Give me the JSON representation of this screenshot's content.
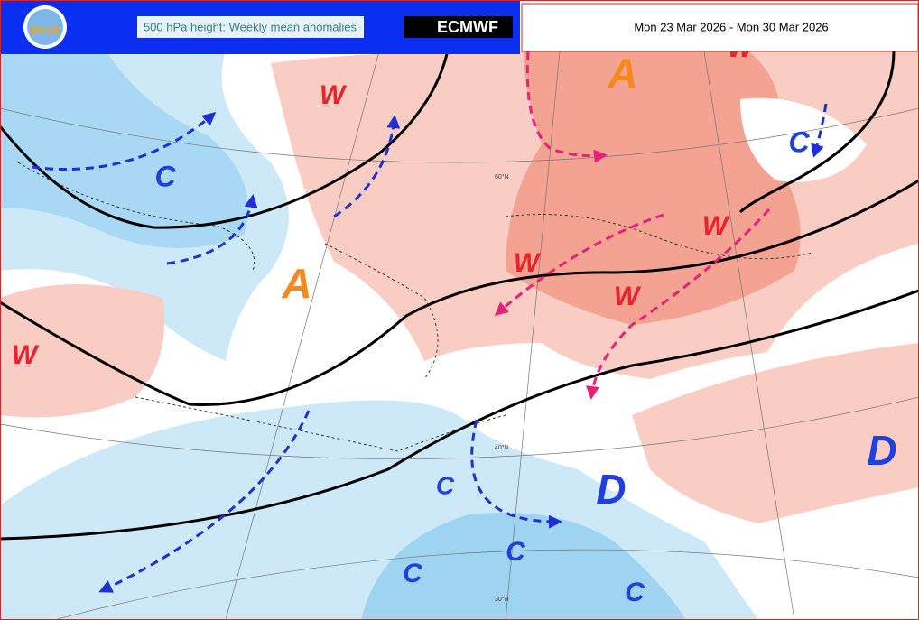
{
  "header": {
    "logo": "BMCB",
    "title": "500 hPa height: Weekly mean anomalies",
    "brand": "ECMWF",
    "date_range": "Mon 23 Mar 2026 - Mon 30 Mar 2026"
  },
  "map": {
    "grid_labels": [
      "60°N",
      "40°N",
      "30°N"
    ],
    "labels": [
      {
        "text": "W",
        "color": "#e8232a"
      },
      {
        "text": "W",
        "color": "#e8232a"
      },
      {
        "text": "W",
        "color": "#e8232a"
      },
      {
        "text": "W",
        "color": "#e8232a"
      },
      {
        "text": "W",
        "color": "#e8232a"
      },
      {
        "text": "W",
        "color": "#e8232a"
      },
      {
        "text": "A",
        "color": "#f5891f"
      },
      {
        "text": "A",
        "color": "#f5891f"
      },
      {
        "text": "C",
        "color": "#1f3fe0"
      },
      {
        "text": "C",
        "color": "#1f3fe0"
      },
      {
        "text": "C",
        "color": "#1f3fe0"
      },
      {
        "text": "C",
        "color": "#1f3fe0"
      },
      {
        "text": "C",
        "color": "#1f3fe0"
      },
      {
        "text": "C",
        "color": "#1f3fe0"
      },
      {
        "text": "D",
        "color": "#1f3fe0"
      },
      {
        "text": "D",
        "color": "#1f3fe0"
      }
    ]
  }
}
